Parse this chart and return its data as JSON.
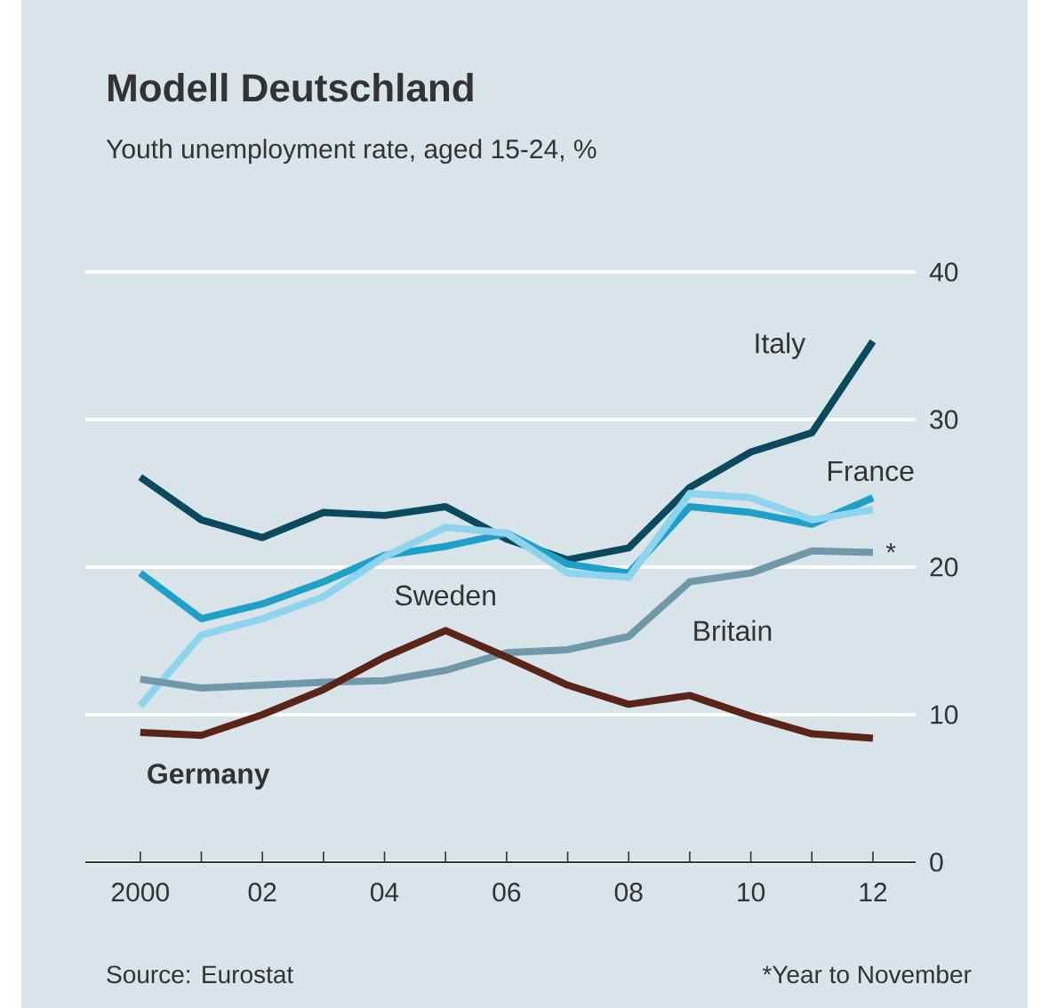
{
  "chart_data": {
    "type": "line",
    "title": "Modell Deutschland",
    "subtitle": "Youth unemployment rate, aged 15-24, %",
    "x": [
      2000,
      2001,
      2002,
      2003,
      2004,
      2005,
      2006,
      2007,
      2008,
      2009,
      2010,
      2011,
      2012
    ],
    "series": [
      {
        "name": "Italy",
        "color": "#0b4a5e",
        "values": [
          26.1,
          23.2,
          22.0,
          23.7,
          23.5,
          24.1,
          21.9,
          20.5,
          21.3,
          25.4,
          27.8,
          29.1,
          35.3
        ]
      },
      {
        "name": "France",
        "color": "#1ea0c8",
        "values": [
          19.6,
          16.5,
          17.5,
          19.0,
          20.8,
          21.4,
          22.3,
          20.2,
          19.6,
          24.1,
          23.7,
          22.9,
          24.7
        ]
      },
      {
        "name": "Sweden",
        "color": "#8fd4ee",
        "values": [
          10.6,
          15.4,
          16.5,
          18.0,
          20.7,
          22.7,
          22.3,
          19.6,
          19.3,
          25.0,
          24.7,
          23.2,
          23.9
        ]
      },
      {
        "name": "Britain",
        "color": "#6f98a8",
        "values": [
          12.4,
          11.8,
          12.0,
          12.2,
          12.3,
          13.0,
          14.2,
          14.4,
          15.3,
          19.0,
          19.6,
          21.1,
          21.0
        ]
      },
      {
        "name": "Germany",
        "color": "#5a2418",
        "values": [
          8.8,
          8.6,
          10.0,
          11.7,
          13.9,
          15.7,
          13.9,
          12.0,
          10.7,
          11.3,
          9.9,
          8.7,
          8.4
        ]
      }
    ],
    "xlim": [
      1999.1,
      2012.7
    ],
    "ylim": [
      0,
      40
    ],
    "xticks": [
      {
        "value": 2000,
        "label": "2000"
      },
      {
        "value": 2001,
        "label": null
      },
      {
        "value": 2002,
        "label": "02"
      },
      {
        "value": 2003,
        "label": null
      },
      {
        "value": 2004,
        "label": "04"
      },
      {
        "value": 2005,
        "label": null
      },
      {
        "value": 2006,
        "label": "06"
      },
      {
        "value": 2007,
        "label": null
      },
      {
        "value": 2008,
        "label": "08"
      },
      {
        "value": 2009,
        "label": null
      },
      {
        "value": 2010,
        "label": "10"
      },
      {
        "value": 2011,
        "label": null
      },
      {
        "value": 2012,
        "label": "12"
      }
    ],
    "yticks": [
      0,
      10,
      20,
      30,
      40
    ],
    "grid": "y",
    "line_style": "solid",
    "annotations": [
      "Source: Eurostat",
      "*Year to November",
      {
        "text": "*",
        "x": 2012,
        "y": 21.0
      }
    ]
  }
}
